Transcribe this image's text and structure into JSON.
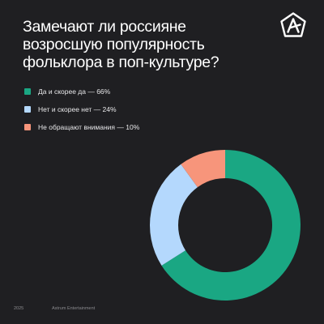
{
  "title": "Замечают ли россияне возросшую популярность фольклора в поп-культуре?",
  "logo": {
    "icon": "astrum-star-logo-icon",
    "color": "#ffffff"
  },
  "chart_data": {
    "type": "pie",
    "title": "Замечают ли россияне возросшую популярность фольклора в поп-культуре?",
    "donut": true,
    "legend_position": "top-left",
    "categories": [
      "Да и скорее да",
      "Нет и скорее нет",
      "Не обращают внимания"
    ],
    "values": [
      66,
      24,
      10
    ],
    "unit": "%",
    "colors": [
      "#1aa783",
      "#b4d8fd",
      "#f7957b"
    ],
    "legend_labels": [
      "Да и скорее да — 66%",
      "Нет и скорее нет — 24%",
      "Не обращают внимания — 10%"
    ]
  },
  "footer": {
    "year": "2025",
    "brand": "Astrum Entertainment"
  }
}
